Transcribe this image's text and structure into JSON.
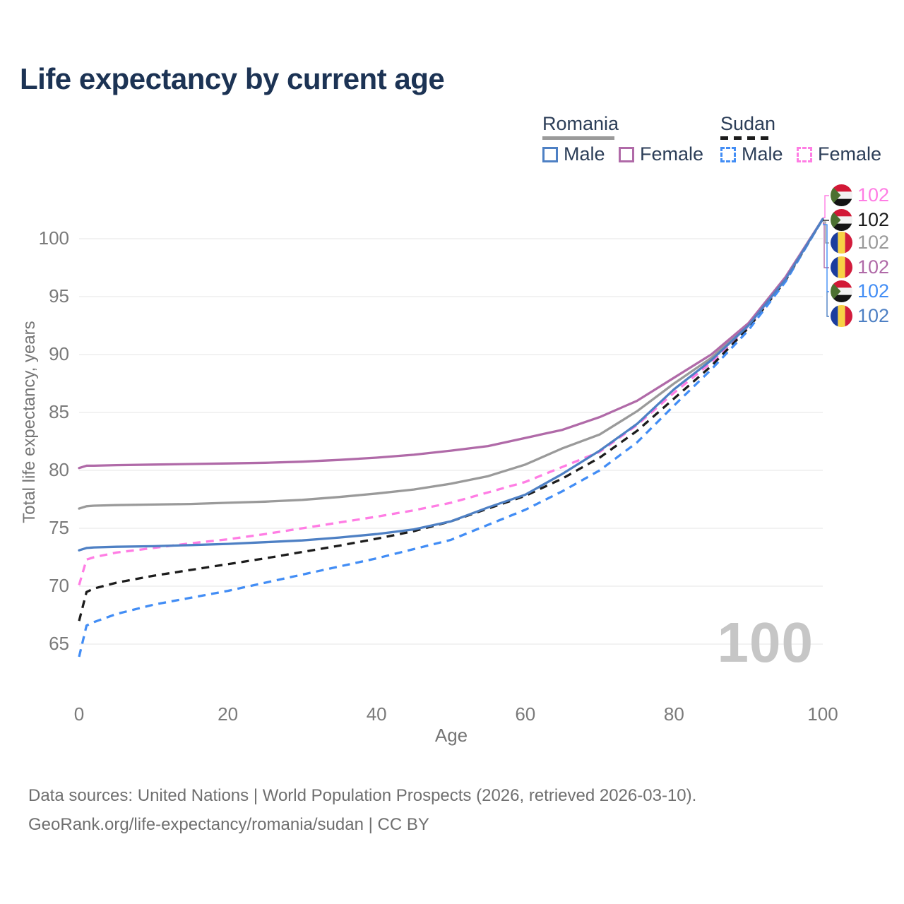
{
  "title": "Life expectancy by current age",
  "legend": {
    "romania": {
      "label": "Romania",
      "male": "Male",
      "female": "Female"
    },
    "sudan": {
      "label": "Sudan",
      "male": "Male",
      "female": "Female"
    }
  },
  "colors": {
    "romania_key": "#9a9a9a",
    "sudan_key": "#1c1c1c",
    "romania_male": "#4e80c4",
    "romania_female": "#b06aa8",
    "sudan_male": "#428df5",
    "sudan_female": "#ff7de4",
    "gridline": "#ebebeb",
    "axis_text": "#7a7a7a",
    "title_text": "#1c3354",
    "watermark_text": "#c6c6c6"
  },
  "flags": {
    "romania": {
      "stripes": [
        "#1b3d9e",
        "#f7d245",
        "#d21c3c"
      ]
    },
    "sudan": {
      "stripes": [
        "#d21836",
        "#f2f2f2",
        "#141414"
      ],
      "triangle": "#4c7031"
    }
  },
  "chart_data": {
    "type": "line",
    "title": "Life expectancy by current age",
    "xlabel": "Age",
    "ylabel": "Total life expectancy, years",
    "xlim": [
      0,
      100
    ],
    "ylim": [
      63,
      103
    ],
    "x_ticks": [
      0,
      20,
      40,
      60,
      80,
      100
    ],
    "y_ticks": [
      65,
      70,
      75,
      80,
      85,
      90,
      95,
      100
    ],
    "grid": "horizontal",
    "legend_position": "top-right",
    "age_counter_watermark": "100",
    "x": [
      0,
      1,
      2,
      5,
      10,
      15,
      20,
      25,
      30,
      35,
      40,
      45,
      50,
      55,
      60,
      65,
      70,
      75,
      80,
      85,
      90,
      95,
      100
    ],
    "series": [
      {
        "id": "romania-both",
        "name": "Romania — Both sexes",
        "country": "Romania",
        "sex": "Both",
        "style": "solid",
        "color": "#9a9a9a",
        "values": [
          76.7,
          76.9,
          76.95,
          77.0,
          77.05,
          77.1,
          77.2,
          77.3,
          77.45,
          77.7,
          78.0,
          78.35,
          78.85,
          79.5,
          80.5,
          81.9,
          83.1,
          85.1,
          87.5,
          89.7,
          92.6,
          96.6,
          101.7
        ]
      },
      {
        "id": "romania-female",
        "name": "Romania — Female",
        "country": "Romania",
        "sex": "Female",
        "style": "solid",
        "color": "#b06aa8",
        "values": [
          80.2,
          80.4,
          80.4,
          80.45,
          80.5,
          80.55,
          80.6,
          80.65,
          80.75,
          80.9,
          81.1,
          81.35,
          81.7,
          82.1,
          82.8,
          83.5,
          84.6,
          86.0,
          88.0,
          90.0,
          92.7,
          96.7,
          101.7
        ]
      },
      {
        "id": "sudan-female",
        "name": "Sudan — Female",
        "country": "Sudan",
        "sex": "Female",
        "style": "dashed",
        "color": "#ff7de4",
        "values": [
          70.1,
          72.3,
          72.5,
          72.9,
          73.3,
          73.7,
          74.05,
          74.5,
          75.0,
          75.5,
          76.0,
          76.55,
          77.2,
          78.1,
          79.0,
          80.3,
          81.6,
          83.9,
          86.7,
          89.3,
          92.4,
          96.5,
          101.7
        ]
      },
      {
        "id": "sudan-both",
        "name": "Sudan — Both sexes",
        "country": "Sudan",
        "sex": "Both",
        "style": "dashed",
        "color": "#1c1c1c",
        "values": [
          67.0,
          69.5,
          69.8,
          70.3,
          70.9,
          71.4,
          71.9,
          72.4,
          72.95,
          73.5,
          74.1,
          74.75,
          75.6,
          76.7,
          77.8,
          79.3,
          81.1,
          83.4,
          86.2,
          89.0,
          92.3,
          96.4,
          101.7
        ]
      },
      {
        "id": "sudan-male",
        "name": "Sudan — Male",
        "country": "Sudan",
        "sex": "Male",
        "style": "dashed",
        "color": "#428df5",
        "values": [
          63.9,
          66.6,
          66.9,
          67.6,
          68.4,
          69.0,
          69.6,
          70.3,
          71.0,
          71.7,
          72.4,
          73.2,
          74.0,
          75.3,
          76.6,
          78.2,
          80.0,
          82.4,
          85.6,
          88.7,
          92.1,
          96.3,
          101.7
        ]
      },
      {
        "id": "romania-male",
        "name": "Romania — Male",
        "country": "Romania",
        "sex": "Male",
        "style": "solid",
        "color": "#4e80c4",
        "values": [
          73.1,
          73.3,
          73.35,
          73.4,
          73.45,
          73.55,
          73.65,
          73.8,
          73.95,
          74.2,
          74.5,
          74.9,
          75.6,
          76.8,
          77.9,
          79.7,
          81.7,
          84.0,
          87.0,
          89.5,
          92.5,
          96.5,
          101.7
        ]
      }
    ],
    "end_labels": [
      {
        "flag": "sudan",
        "value": "102",
        "color": "#ff7de4",
        "series": "sudan-female"
      },
      {
        "flag": "sudan",
        "value": "102",
        "color": "#1c1c1c",
        "series": "sudan-both"
      },
      {
        "flag": "romania",
        "value": "102",
        "color": "#9a9a9a",
        "series": "romania-both"
      },
      {
        "flag": "romania",
        "value": "102",
        "color": "#b06aa8",
        "series": "romania-female"
      },
      {
        "flag": "sudan",
        "value": "102",
        "color": "#428df5",
        "series": "sudan-male"
      },
      {
        "flag": "romania",
        "value": "102",
        "color": "#4e80c4",
        "series": "romania-male"
      }
    ]
  },
  "footer": {
    "line1": "Data sources: United Nations | World Population Prospects (2026, retrieved 2026-03-10).",
    "line2": "GeoRank.org/life-expectancy/romania/sudan | CC BY"
  }
}
